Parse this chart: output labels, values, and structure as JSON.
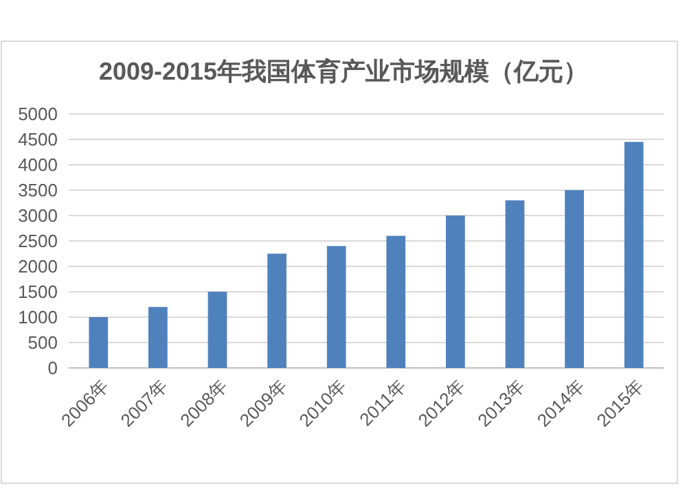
{
  "chart_data": {
    "type": "bar",
    "title": "2009-2015年我国体育产业市场规模（亿元）",
    "categories": [
      "2006年",
      "2007年",
      "2008年",
      "2009年",
      "2010年",
      "2011年",
      "2012年",
      "2013年",
      "2014年",
      "2015年"
    ],
    "series": [
      {
        "color": "#4f81bd",
        "values": [
          1000,
          1200,
          1500,
          2250,
          2400,
          2600,
          3000,
          3300,
          3500,
          4450
        ]
      }
    ],
    "ylim": [
      0,
      5000
    ],
    "yticks": [
      0,
      500,
      1000,
      1500,
      2000,
      2500,
      3000,
      3500,
      4000,
      4500,
      5000
    ],
    "grid": "y"
  }
}
